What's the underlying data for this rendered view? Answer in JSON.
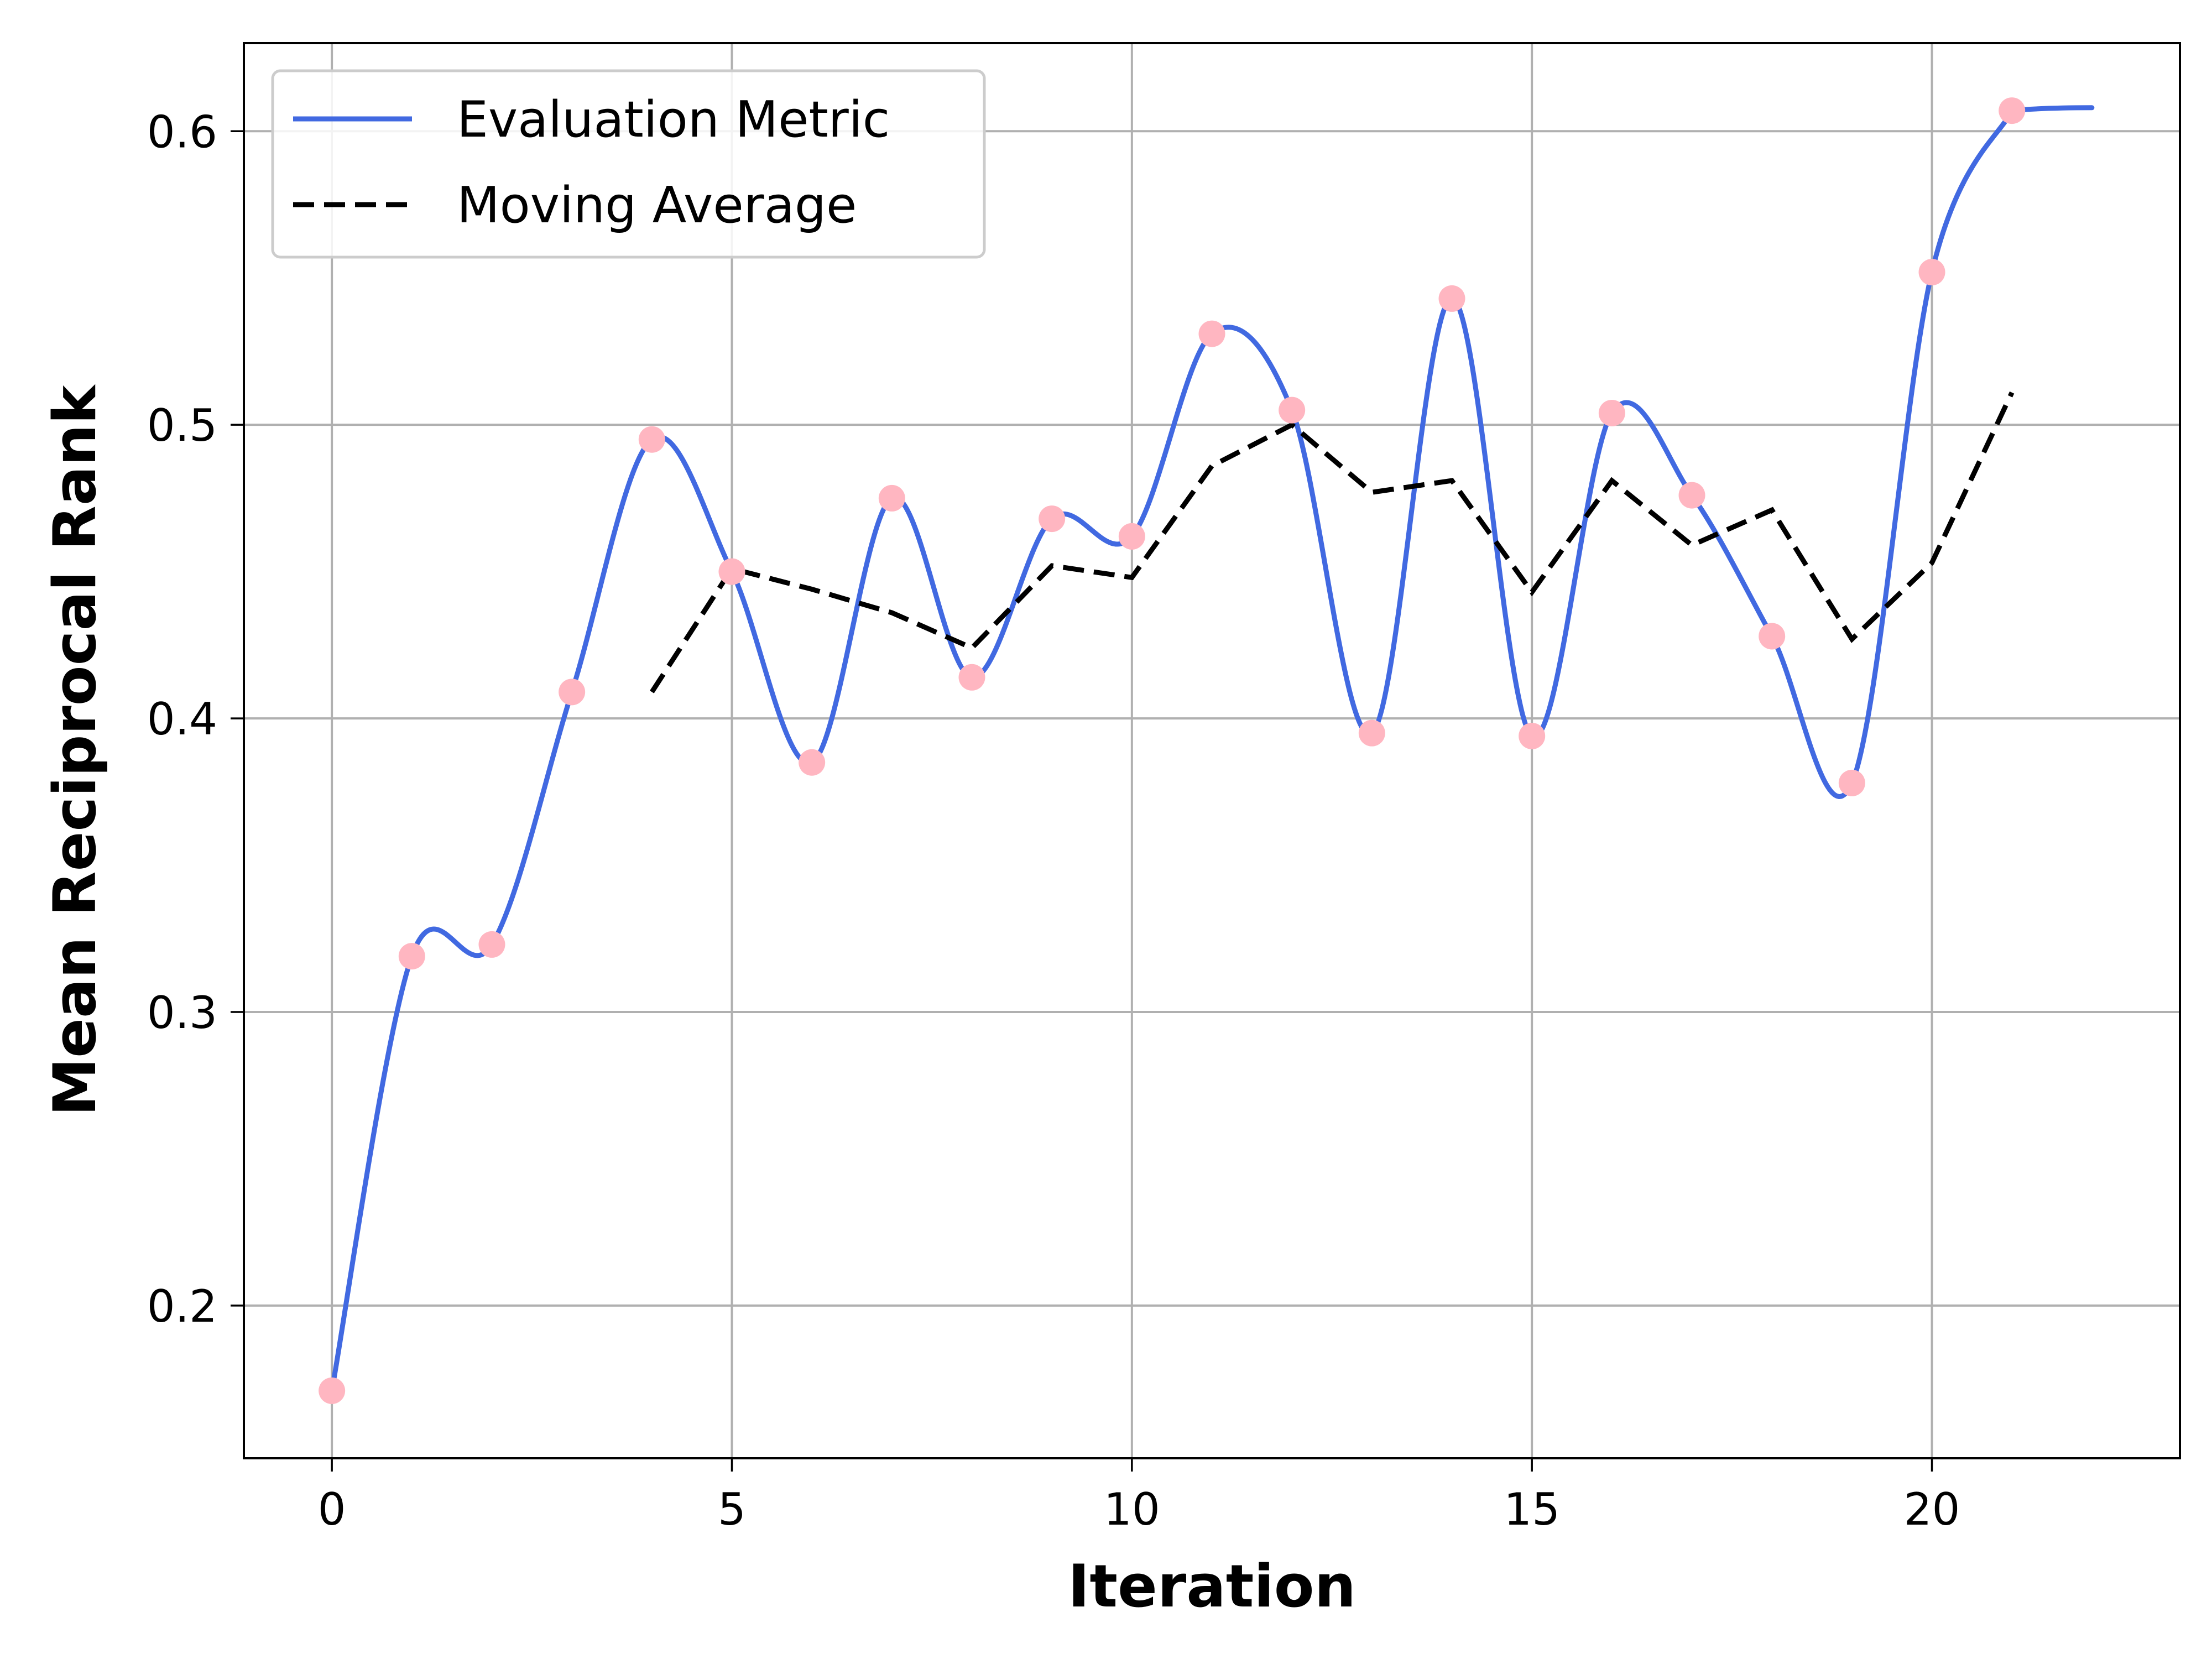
{
  "chart_data": {
    "type": "line",
    "xlabel": "Iteration",
    "ylabel": "Mean Reciprocal Rank",
    "xlim": [
      -1.1,
      23.1
    ],
    "ylim": [
      0.148,
      0.63
    ],
    "xticks": [
      0,
      5,
      10,
      15,
      20
    ],
    "yticks": [
      0.2,
      0.3,
      0.4,
      0.5,
      0.6
    ],
    "xtick_labels": [
      "0",
      "5",
      "10",
      "15",
      "20"
    ],
    "ytick_labels": [
      "0.2",
      "0.3",
      "0.4",
      "0.5",
      "0.6"
    ],
    "grid": true,
    "legend_position": "top-left",
    "series": [
      {
        "name": "Evaluation Metric",
        "style": "smooth-solid",
        "color": "#4169e1",
        "marker_color": "#ffb6c1",
        "x": [
          0,
          1,
          2,
          3,
          4,
          5,
          6,
          7,
          8,
          9,
          10,
          11,
          12,
          13,
          14,
          15,
          16,
          17,
          18,
          19,
          20,
          21
        ],
        "y": [
          0.171,
          0.319,
          0.323,
          0.409,
          0.495,
          0.45,
          0.385,
          0.475,
          0.414,
          0.468,
          0.462,
          0.531,
          0.505,
          0.395,
          0.543,
          0.394,
          0.504,
          0.476,
          0.428,
          0.378,
          0.552,
          0.607
        ],
        "extend_to_x": 22,
        "extend_to_y": 0.608
      },
      {
        "name": "Moving Average",
        "style": "dashed",
        "color": "#000000",
        "x": [
          4,
          5,
          6,
          7,
          8,
          9,
          10,
          11,
          12,
          13,
          14,
          15,
          16,
          17,
          18,
          19,
          20,
          21
        ],
        "y": [
          0.409,
          0.451,
          0.444,
          0.436,
          0.424,
          0.452,
          0.448,
          0.486,
          0.5,
          0.477,
          0.481,
          0.443,
          0.481,
          0.459,
          0.471,
          0.427,
          0.453,
          0.511
        ]
      }
    ]
  }
}
